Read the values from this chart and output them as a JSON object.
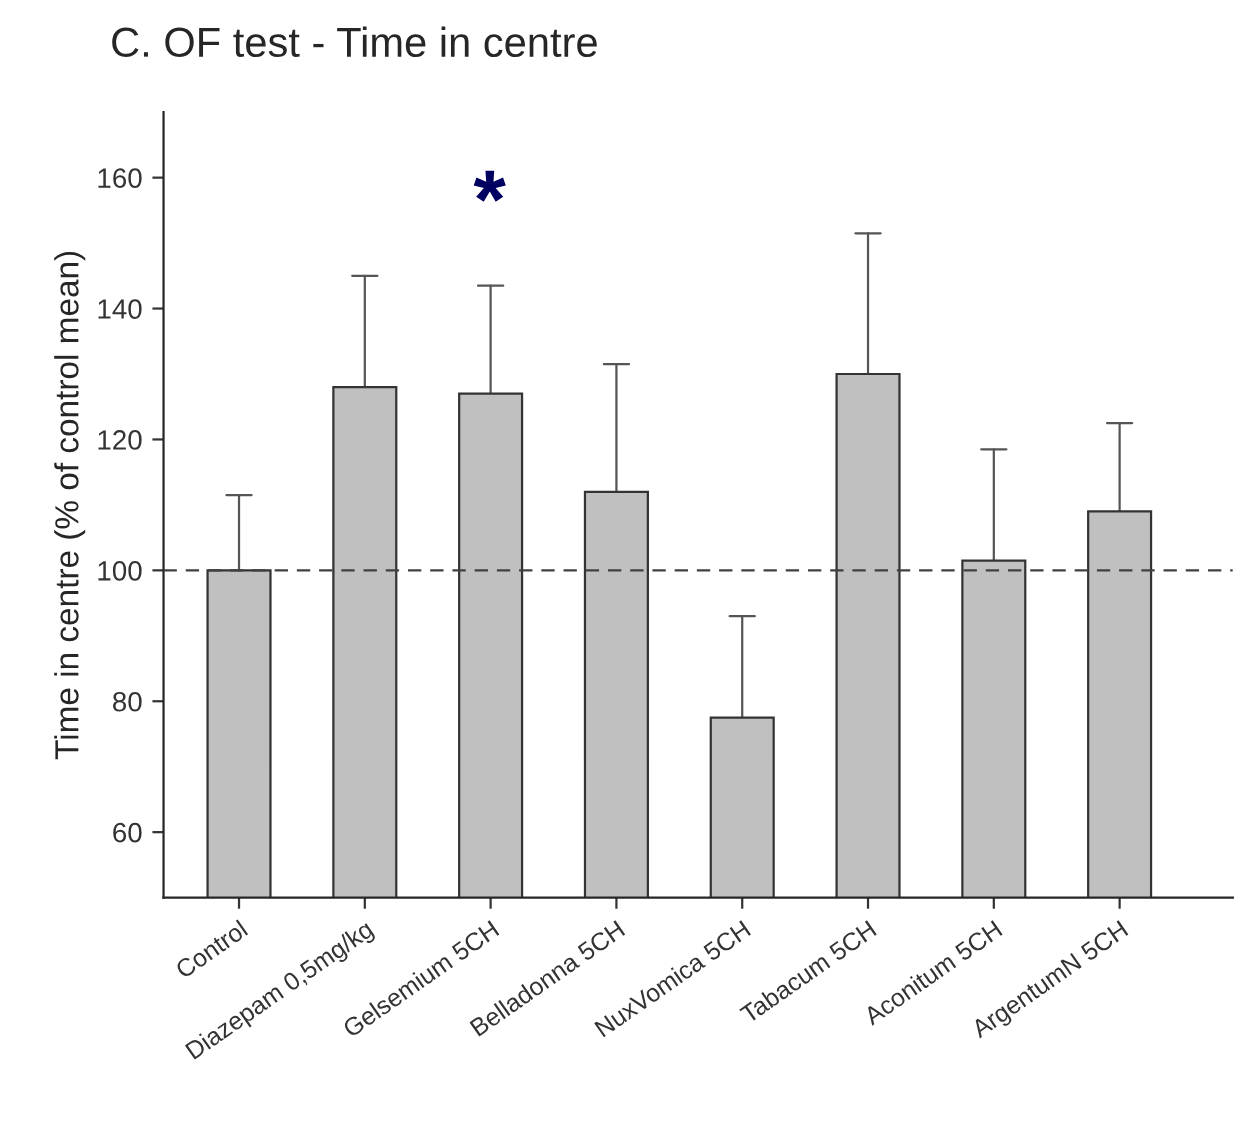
{
  "chart_data": {
    "type": "bar",
    "title": "C. OF test - Time in centre",
    "ylabel": "Time in centre (% of control mean)",
    "categories": [
      "Control",
      "Diazepam 0,5mg/kg",
      "Gelsemium 5CH",
      "Belladonna 5CH",
      "NuxVomica 5CH",
      "Tabacum 5CH",
      "Aconitum 5CH",
      "ArgentumN 5CH"
    ],
    "values": [
      100,
      128,
      127,
      112,
      77.5,
      130,
      101.5,
      109
    ],
    "errors": [
      [
        100,
        111.5
      ],
      [
        128,
        145
      ],
      [
        127,
        143.5
      ],
      [
        112,
        131.5
      ],
      [
        77.5,
        93
      ],
      [
        130,
        151.5
      ],
      [
        101.5,
        118.5
      ],
      [
        109,
        122.5
      ]
    ],
    "color": "#c0c0c0",
    "ylim": [
      50,
      170
    ],
    "yticks": [
      60,
      80,
      100,
      120,
      140,
      160
    ],
    "grid": false,
    "ref_lines": [
      {
        "axis": "y",
        "value": 100,
        "line_style": "dashed",
        "color": "#404040"
      }
    ],
    "annotations": [
      "*"
    ]
  }
}
